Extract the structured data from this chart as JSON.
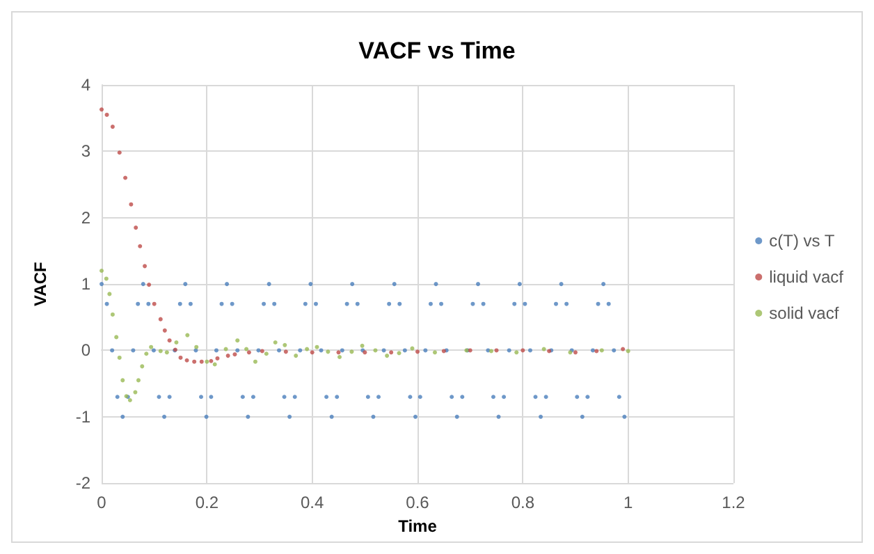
{
  "chart_data": {
    "type": "scatter",
    "title": "VACF vs Time",
    "xlabel": "Time",
    "ylabel": "VACF",
    "xlim": [
      0,
      1.2
    ],
    "xticks": [
      0,
      0.2,
      0.4,
      0.6,
      0.8,
      1,
      1.2
    ],
    "ylim": [
      -2,
      4
    ],
    "yticks": [
      -2,
      -1,
      0,
      1,
      2,
      3,
      4
    ],
    "grid": true,
    "legend": "right",
    "marker": "circle",
    "series": [
      {
        "name": "c(T) vs T",
        "color": "#4a7ebb",
        "x": [
          0,
          0.01,
          0.02,
          0.03,
          0.04,
          0.05,
          0.06,
          0.069,
          0.079,
          0.089,
          0.099,
          0.109,
          0.119,
          0.129,
          0.139,
          0.149,
          0.159,
          0.169,
          0.179,
          0.189,
          0.199,
          0.208,
          0.218,
          0.228,
          0.238,
          0.248,
          0.258,
          0.268,
          0.278,
          0.288,
          0.298,
          0.308,
          0.318,
          0.328,
          0.337,
          0.347,
          0.357,
          0.367,
          0.377,
          0.387,
          0.397,
          0.407,
          0.417,
          0.427,
          0.437,
          0.447,
          0.457,
          0.466,
          0.476,
          0.486,
          0.496,
          0.506,
          0.516,
          0.526,
          0.536,
          0.546,
          0.556,
          0.566,
          0.576,
          0.586,
          0.596,
          0.605,
          0.615,
          0.625,
          0.635,
          0.645,
          0.655,
          0.665,
          0.675,
          0.685,
          0.695,
          0.705,
          0.715,
          0.725,
          0.734,
          0.744,
          0.754,
          0.764,
          0.774,
          0.784,
          0.794,
          0.804,
          0.814,
          0.824,
          0.834,
          0.844,
          0.854,
          0.863,
          0.873,
          0.883,
          0.893,
          0.903,
          0.913,
          0.923,
          0.933,
          0.943,
          0.953,
          0.963,
          0.973,
          0.983,
          0.993
        ],
        "values": [
          1,
          0.7,
          0,
          -0.7,
          -1,
          -0.7,
          0,
          0.7,
          1,
          0.7,
          0,
          -0.7,
          -1,
          -0.7,
          0,
          0.7,
          1,
          0.7,
          0,
          -0.7,
          -1,
          -0.7,
          0,
          0.7,
          1,
          0.7,
          0,
          -0.7,
          -1,
          -0.7,
          0,
          0.7,
          1,
          0.7,
          0,
          -0.7,
          -1,
          -0.7,
          0,
          0.7,
          1,
          0.7,
          0,
          -0.7,
          -1,
          -0.7,
          0,
          0.7,
          1,
          0.7,
          0,
          -0.7,
          -1,
          -0.7,
          0,
          0.7,
          1,
          0.7,
          0,
          -0.7,
          -1,
          -0.7,
          0,
          0.7,
          1,
          0.7,
          0,
          -0.7,
          -1,
          -0.7,
          0,
          0.7,
          1,
          0.7,
          0,
          -0.7,
          -1,
          -0.7,
          0,
          0.7,
          1,
          0.7,
          0,
          -0.7,
          -1,
          -0.7,
          0,
          0.7,
          1,
          0.7,
          0,
          -0.7,
          -1,
          -0.7,
          0,
          0.7,
          1,
          0.7,
          0,
          -0.7,
          -1
        ]
      },
      {
        "name": "liquid vacf",
        "color": "#be4b48",
        "x": [
          0,
          0.01,
          0.021,
          0.034,
          0.045,
          0.056,
          0.065,
          0.073,
          0.082,
          0.09,
          0.1,
          0.112,
          0.12,
          0.129,
          0.14,
          0.15,
          0.162,
          0.176,
          0.19,
          0.208,
          0.22,
          0.24,
          0.253,
          0.28,
          0.305,
          0.35,
          0.4,
          0.45,
          0.5,
          0.55,
          0.6,
          0.65,
          0.7,
          0.75,
          0.8,
          0.85,
          0.9,
          0.94,
          0.99
        ],
        "values": [
          3.63,
          3.55,
          3.37,
          2.98,
          2.6,
          2.2,
          1.85,
          1.57,
          1.27,
          0.99,
          0.7,
          0.47,
          0.3,
          0.15,
          0.01,
          -0.11,
          -0.15,
          -0.17,
          -0.17,
          -0.16,
          -0.12,
          -0.08,
          -0.06,
          -0.03,
          -0.01,
          -0.02,
          -0.03,
          -0.03,
          -0.03,
          -0.03,
          -0.02,
          -0.01,
          0,
          0,
          0,
          -0.01,
          -0.03,
          -0.01,
          0.02
        ]
      },
      {
        "name": "solid vacf",
        "color": "#98b954",
        "x": [
          0,
          0.009,
          0.015,
          0.021,
          0.028,
          0.034,
          0.04,
          0.047,
          0.054,
          0.064,
          0.07,
          0.077,
          0.085,
          0.094,
          0.112,
          0.124,
          0.142,
          0.163,
          0.18,
          0.2,
          0.215,
          0.236,
          0.258,
          0.275,
          0.292,
          0.313,
          0.33,
          0.348,
          0.369,
          0.39,
          0.409,
          0.43,
          0.452,
          0.475,
          0.495,
          0.52,
          0.542,
          0.565,
          0.59,
          0.633,
          0.693,
          0.74,
          0.788,
          0.84,
          0.89,
          0.95,
          1
        ],
        "values": [
          1.2,
          1.08,
          0.85,
          0.54,
          0.2,
          -0.11,
          -0.45,
          -0.69,
          -0.75,
          -0.63,
          -0.45,
          -0.24,
          -0.05,
          0.05,
          -0.01,
          -0.03,
          0.12,
          0.23,
          0.05,
          -0.17,
          -0.21,
          0.02,
          0.15,
          0.02,
          -0.17,
          -0.05,
          0.12,
          0.08,
          -0.08,
          0.02,
          0.05,
          -0.02,
          -0.1,
          -0.02,
          0.07,
          0,
          -0.08,
          -0.04,
          0.03,
          -0.03,
          0,
          -0.01,
          -0.03,
          0.02,
          -0.03,
          0,
          -0.01
        ]
      }
    ]
  }
}
